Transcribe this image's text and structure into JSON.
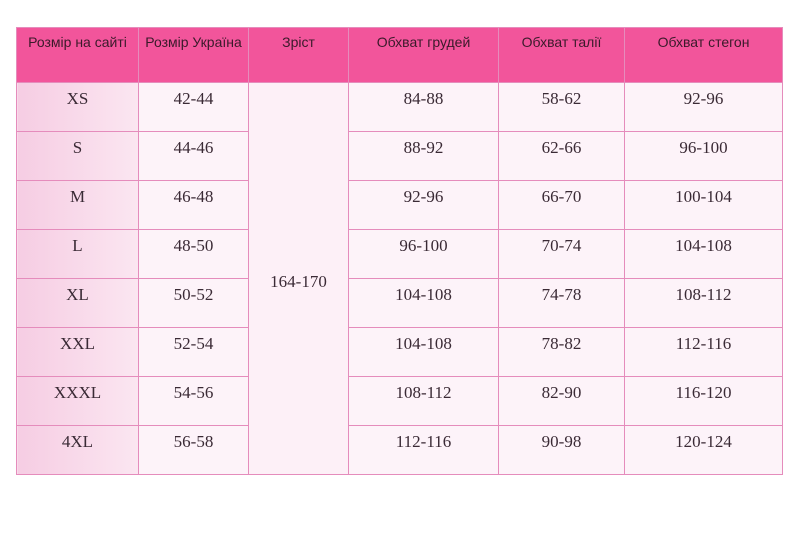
{
  "headers": [
    "Розмір на сайті",
    "Розмір Україна",
    "Зріст",
    "Обхват грудей",
    "Обхват талії",
    "Обхват стегон"
  ],
  "height": "164-170",
  "rows": [
    [
      "XS",
      "42-44",
      "84-88",
      "58-62",
      "92-96"
    ],
    [
      "S",
      "44-46",
      "88-92",
      "62-66",
      "96-100"
    ],
    [
      "M",
      "46-48",
      "92-96",
      "66-70",
      "100-104"
    ],
    [
      "L",
      "48-50",
      "96-100",
      "70-74",
      "104-108"
    ],
    [
      "XL",
      "50-52",
      "104-108",
      "74-78",
      "108-112"
    ],
    [
      "XXL",
      "52-54",
      "104-108",
      "78-82",
      "112-116"
    ],
    [
      "XXXL",
      "54-56",
      "108-112",
      "82-90",
      "116-120"
    ],
    [
      "4XL",
      "56-58",
      "112-116",
      "90-98",
      "120-124"
    ]
  ],
  "colors": {
    "header": "#f2559b",
    "border": "#e58cbc"
  }
}
